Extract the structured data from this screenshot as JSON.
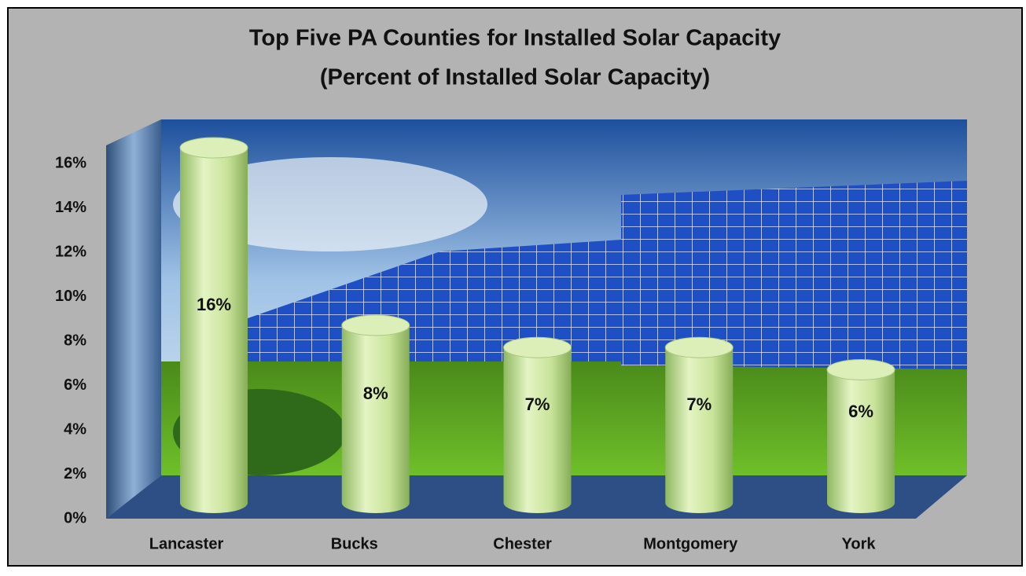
{
  "chart_data": {
    "type": "bar3d",
    "title": [
      "Top Five PA Counties for Installed Solar Capacity",
      "(Percent of Installed Solar Capacity)"
    ],
    "categories": [
      "Lancaster",
      "Bucks",
      "Chester",
      "Montgomery",
      "York"
    ],
    "values": [
      16,
      8,
      7,
      7,
      6
    ],
    "value_labels": [
      "16%",
      "8%",
      "7%",
      "7%",
      "6%"
    ],
    "color": "#c9e39a",
    "ylim": [
      0,
      16
    ],
    "yticks": [
      {
        "value": 0,
        "label": "0%"
      },
      {
        "value": 2,
        "label": "2%"
      },
      {
        "value": 4,
        "label": "4%"
      },
      {
        "value": 6,
        "label": "6%"
      },
      {
        "value": 8,
        "label": "8%"
      },
      {
        "value": 10,
        "label": "10%"
      },
      {
        "value": 12,
        "label": "12%"
      },
      {
        "value": 14,
        "label": "14%"
      },
      {
        "value": 16,
        "label": "16%"
      }
    ]
  }
}
